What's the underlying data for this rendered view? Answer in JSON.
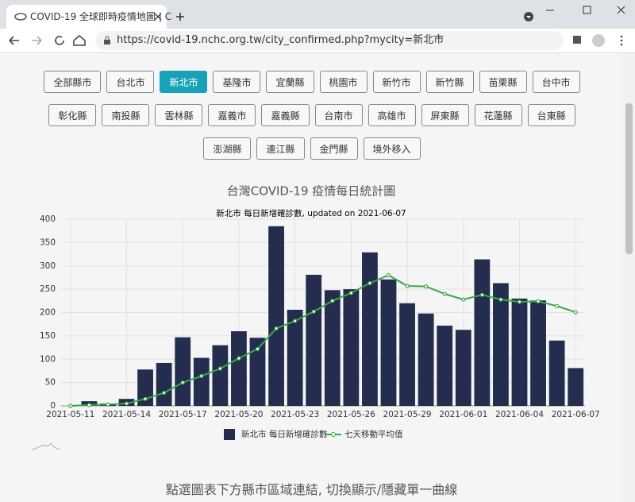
{
  "browser": {
    "tab_title": "COVID-19 全球即時疫情地圖 | C",
    "url": "https://covid-19.nchc.org.tw/city_confirmed.php?mycity=新北市"
  },
  "buttons": [
    "全部縣市",
    "台北市",
    "新北市",
    "基隆市",
    "宜蘭縣",
    "桃園市",
    "新竹市",
    "新竹縣",
    "苗栗縣",
    "台中市",
    "彰化縣",
    "南投縣",
    "雲林縣",
    "嘉義市",
    "嘉義縣",
    "台南市",
    "高雄市",
    "屏東縣",
    "花蓮縣",
    "台東縣",
    "澎湖縣",
    "連江縣",
    "金門縣",
    "境外移入"
  ],
  "active_button": "新北市",
  "footer_text": "點選圖表下方縣市區域連結, 切換顯示/隱藏單一曲線",
  "chart_data": {
    "type": "bar",
    "title": "台灣COVID-19 疫情每日統計圖",
    "subtitle": "新北市 每日新增確診數, updated on 2021-06-07",
    "categories": [
      "2021-05-11",
      null,
      null,
      "2021-05-14",
      null,
      null,
      "2021-05-17",
      null,
      null,
      "2021-05-20",
      null,
      null,
      "2021-05-23",
      null,
      null,
      "2021-05-26",
      null,
      null,
      "2021-05-29",
      null,
      null,
      "2021-06-01",
      null,
      null,
      "2021-06-04",
      null,
      null,
      "2021-06-07"
    ],
    "series": [
      {
        "name": "新北市 每日新增確診數",
        "type": "bar",
        "color": "#252d4f",
        "values": [
          0,
          10,
          5,
          15,
          78,
          92,
          147,
          103,
          130,
          160,
          146,
          385,
          206,
          281,
          248,
          250,
          329,
          271,
          220,
          198,
          172,
          163,
          314,
          263,
          230,
          226,
          140,
          81
        ]
      },
      {
        "name": "七天移動平均值",
        "type": "line",
        "color": "#3aa845",
        "values": [
          0,
          2,
          3,
          5,
          15,
          28,
          50,
          64,
          80,
          102,
          122,
          166,
          182,
          202,
          225,
          242,
          263,
          280,
          257,
          256,
          240,
          228,
          238,
          228,
          223,
          224,
          214,
          201
        ]
      }
    ],
    "ylim": [
      0,
      400
    ],
    "yticks": [
      0,
      50,
      100,
      150,
      200,
      250,
      300,
      350,
      400
    ],
    "grid": true
  }
}
